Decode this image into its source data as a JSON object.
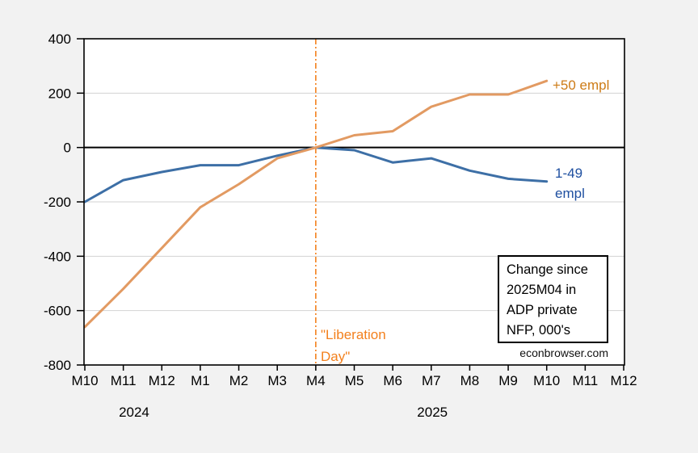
{
  "colors": {
    "background": "#F2F2F2",
    "plot_background": "#FFFFFF",
    "gridline": "#D2D2D2",
    "axis": "#000000"
  },
  "chart_data": {
    "type": "line",
    "grid": "horizontal",
    "ylim": [
      -800,
      400
    ],
    "y_ticks": [
      400,
      200,
      0,
      -200,
      -400,
      -600,
      -800
    ],
    "x_tick_labels": [
      "M10",
      "M11",
      "M12",
      "M1",
      "M2",
      "M3",
      "M4",
      "M5",
      "M6",
      "M7",
      "M8",
      "M9",
      "M10",
      "M11",
      "M12"
    ],
    "x_axis_years": [
      {
        "label": "2024",
        "tick_index": 1.28
      },
      {
        "label": "2025",
        "tick_index": 9.03
      }
    ],
    "categories": [
      "2024M10",
      "2024M11",
      "2024M12",
      "2025M01",
      "2025M02",
      "2025M03",
      "2025M04",
      "2025M05",
      "2025M06",
      "2025M07",
      "2025M08",
      "2025M09",
      "2025M10"
    ],
    "series": [
      {
        "name": "1-49 empl",
        "label_lines": [
          "1-49",
          "empl"
        ],
        "color": "#3D6FA6",
        "label_color": "#1E4FA0",
        "values": [
          -200,
          -120,
          -90,
          -65,
          -65,
          -30,
          0,
          -10,
          -55,
          -40,
          -85,
          -115,
          -125
        ]
      },
      {
        "name": "+50 empl",
        "label_lines": [
          "+50 empl"
        ],
        "color": "#E29A62",
        "label_color": "#CD7B16",
        "values": [
          -660,
          -520,
          -370,
          -220,
          -135,
          -40,
          0,
          45,
          60,
          150,
          195,
          195,
          245
        ]
      }
    ],
    "event_line": {
      "category": "2025M04",
      "tick_index": 6,
      "color": "#F3801D",
      "style": "dash-dot",
      "label_lines": [
        "\"Liberation",
        "Day\""
      ]
    },
    "annotation_box": {
      "lines": [
        "Change since",
        "2025M04 in",
        "ADP private",
        "NFP, 000's"
      ]
    },
    "watermark": "econbrowser.com",
    "legend_position": "inline-right"
  }
}
